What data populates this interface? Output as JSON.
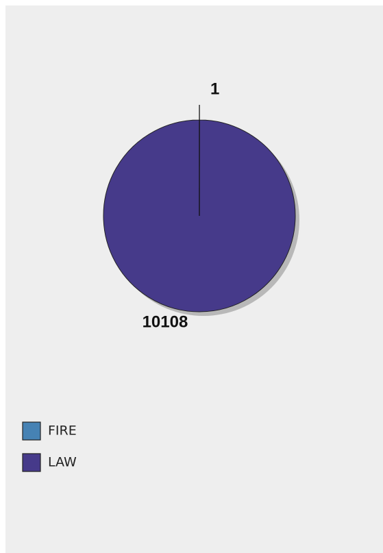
{
  "chart_data": {
    "type": "pie",
    "categories": [
      "FIRE",
      "LAW"
    ],
    "values": [
      1,
      10108
    ],
    "colors": [
      "#4682b4",
      "#463a8a"
    ],
    "legend": "bottom-left"
  }
}
